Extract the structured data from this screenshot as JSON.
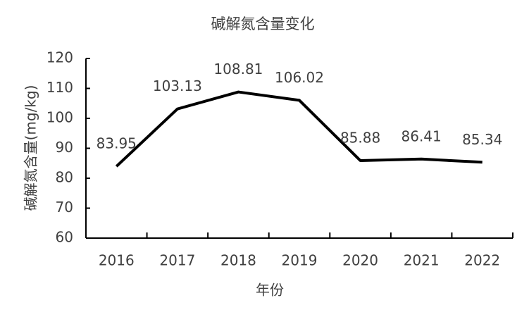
{
  "chart_data": {
    "type": "line",
    "title": "碱解氮含量变化",
    "x_label": "年份",
    "y_label": "碱解氮含量(mg/kg)",
    "categories": [
      "2016",
      "2017",
      "2018",
      "2019",
      "2020",
      "2021",
      "2022"
    ],
    "values": [
      83.95,
      103.13,
      108.81,
      106.02,
      85.88,
      86.41,
      85.34
    ],
    "color": "#000000",
    "ylim": [
      60,
      120
    ],
    "yticks": [
      60,
      70,
      80,
      90,
      100,
      110,
      120
    ],
    "grid": false
  }
}
